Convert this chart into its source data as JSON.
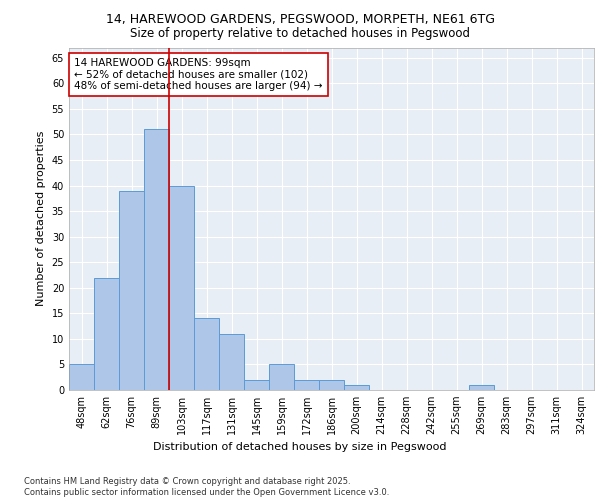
{
  "title_line1": "14, HAREWOOD GARDENS, PEGSWOOD, MORPETH, NE61 6TG",
  "title_line2": "Size of property relative to detached houses in Pegswood",
  "xlabel": "Distribution of detached houses by size in Pegswood",
  "ylabel": "Number of detached properties",
  "categories": [
    "48sqm",
    "62sqm",
    "76sqm",
    "89sqm",
    "103sqm",
    "117sqm",
    "131sqm",
    "145sqm",
    "159sqm",
    "172sqm",
    "186sqm",
    "200sqm",
    "214sqm",
    "228sqm",
    "242sqm",
    "255sqm",
    "269sqm",
    "283sqm",
    "297sqm",
    "311sqm",
    "324sqm"
  ],
  "values": [
    5,
    22,
    39,
    51,
    40,
    14,
    11,
    2,
    5,
    2,
    2,
    1,
    0,
    0,
    0,
    0,
    1,
    0,
    0,
    0,
    0
  ],
  "bar_color": "#aec6e8",
  "bar_edgecolor": "#5b9bd5",
  "vline_x_index": 3.5,
  "vline_color": "#cc0000",
  "annotation_text": "14 HAREWOOD GARDENS: 99sqm\n← 52% of detached houses are smaller (102)\n48% of semi-detached houses are larger (94) →",
  "annotation_box_color": "#ffffff",
  "annotation_box_edgecolor": "#cc0000",
  "ylim": [
    0,
    67
  ],
  "yticks": [
    0,
    5,
    10,
    15,
    20,
    25,
    30,
    35,
    40,
    45,
    50,
    55,
    60,
    65
  ],
  "background_color": "#e8eef5",
  "grid_color": "#ffffff",
  "footer_text": "Contains HM Land Registry data © Crown copyright and database right 2025.\nContains public sector information licensed under the Open Government Licence v3.0.",
  "title_fontsize": 9,
  "subtitle_fontsize": 8.5,
  "axis_label_fontsize": 8,
  "tick_fontsize": 7,
  "annotation_fontsize": 7.5,
  "footer_fontsize": 6
}
